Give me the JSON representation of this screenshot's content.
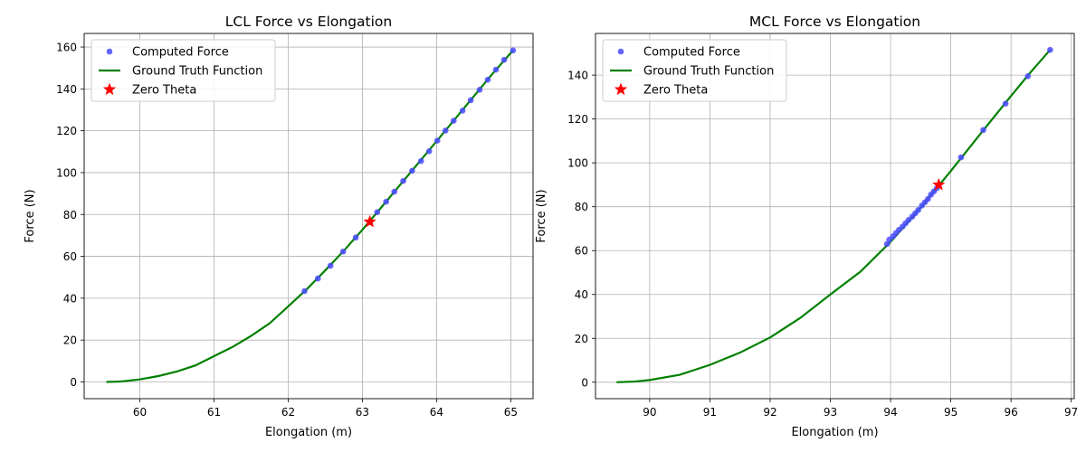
{
  "chart_data": [
    {
      "type": "scatter",
      "title": "LCL Force vs Elongation",
      "xlabel": "Elongation (m)",
      "ylabel": "Force (N)",
      "xlim": [
        59.25,
        65.3
      ],
      "ylim": [
        -8,
        166.5
      ],
      "xticks": [
        60,
        61,
        62,
        63,
        64,
        65
      ],
      "yticks": [
        0,
        20,
        40,
        60,
        80,
        100,
        120,
        140,
        160
      ],
      "grid": true,
      "legend_position": "upper-left",
      "series": [
        {
          "name": "Computed Force",
          "kind": "scatter",
          "color": "#4a4aff",
          "points": [
            [
              62.22,
              43.4
            ],
            [
              62.4,
              49.4
            ],
            [
              62.57,
              55.5
            ],
            [
              62.74,
              62.3
            ],
            [
              62.91,
              69.0
            ],
            [
              63.2,
              81.1
            ],
            [
              63.32,
              86.1
            ],
            [
              63.43,
              90.9
            ],
            [
              63.55,
              96.0
            ],
            [
              63.67,
              100.9
            ],
            [
              63.79,
              105.5
            ],
            [
              63.9,
              110.2
            ],
            [
              64.01,
              115.3
            ],
            [
              64.12,
              120.1
            ],
            [
              64.23,
              124.8
            ],
            [
              64.35,
              129.6
            ],
            [
              64.46,
              134.6
            ],
            [
              64.58,
              139.6
            ],
            [
              64.69,
              144.4
            ],
            [
              64.8,
              149.2
            ],
            [
              64.91,
              153.9
            ],
            [
              65.03,
              158.4
            ]
          ]
        },
        {
          "name": "Ground Truth Function",
          "kind": "line",
          "color": "#008000",
          "points": [
            [
              59.55,
              0.0
            ],
            [
              59.75,
              0.2
            ],
            [
              60.0,
              1.2
            ],
            [
              60.25,
              2.8
            ],
            [
              60.5,
              5.0
            ],
            [
              60.75,
              7.9
            ],
            [
              61.0,
              12.3
            ],
            [
              61.25,
              16.7
            ],
            [
              61.5,
              22.0
            ],
            [
              61.75,
              28.0
            ],
            [
              62.0,
              36.1
            ],
            [
              62.25,
              44.3
            ],
            [
              62.5,
              53.3
            ],
            [
              62.75,
              62.7
            ],
            [
              63.0,
              72.7
            ],
            [
              63.25,
              83.2
            ],
            [
              63.5,
              93.8
            ],
            [
              63.75,
              104.4
            ],
            [
              64.0,
              115.0
            ],
            [
              64.25,
              125.7
            ],
            [
              64.5,
              136.4
            ],
            [
              64.75,
              147.1
            ],
            [
              65.03,
              158.4
            ]
          ]
        },
        {
          "name": "Zero Theta",
          "kind": "marker",
          "color": "#ff0000",
          "points": [
            [
              63.1,
              76.5
            ]
          ]
        }
      ]
    },
    {
      "type": "scatter",
      "title": "MCL Force vs Elongation",
      "xlabel": "Elongation (m)",
      "ylabel": "Force (N)",
      "xlim": [
        89.1,
        97.05
      ],
      "ylim": [
        -7.5,
        159
      ],
      "xticks": [
        90,
        91,
        92,
        93,
        94,
        95,
        96,
        97
      ],
      "yticks": [
        0,
        20,
        40,
        60,
        80,
        100,
        120,
        140
      ],
      "grid": true,
      "legend_position": "upper-left",
      "series": [
        {
          "name": "Computed Force",
          "kind": "scatter",
          "color": "#4a4aff",
          "points": [
            [
              93.94,
              63.0
            ],
            [
              93.98,
              65.0
            ],
            [
              94.04,
              66.5
            ],
            [
              94.09,
              68.0
            ],
            [
              94.14,
              69.5
            ],
            [
              94.2,
              71.0
            ],
            [
              94.25,
              72.5
            ],
            [
              94.3,
              74.0
            ],
            [
              94.36,
              75.5
            ],
            [
              94.41,
              77.0
            ],
            [
              94.46,
              78.5
            ],
            [
              94.52,
              80.5
            ],
            [
              94.57,
              82.0
            ],
            [
              94.62,
              83.5
            ],
            [
              94.67,
              85.5
            ],
            [
              94.72,
              87.0
            ],
            [
              94.77,
              88.5
            ],
            [
              95.17,
              102.5
            ],
            [
              95.54,
              115.0
            ],
            [
              95.91,
              127.0
            ],
            [
              96.28,
              139.5
            ],
            [
              96.65,
              151.5
            ]
          ]
        },
        {
          "name": "Ground Truth Function",
          "kind": "line",
          "color": "#008000",
          "points": [
            [
              89.45,
              0.0
            ],
            [
              89.75,
              0.3
            ],
            [
              90.0,
              1.0
            ],
            [
              90.5,
              3.4
            ],
            [
              91.0,
              7.9
            ],
            [
              91.5,
              13.5
            ],
            [
              92.0,
              20.4
            ],
            [
              92.5,
              29.3
            ],
            [
              93.0,
              40.0
            ],
            [
              93.5,
              50.4
            ],
            [
              94.0,
              64.0
            ],
            [
              94.5,
              79.6
            ],
            [
              95.0,
              96.3
            ],
            [
              95.5,
              113.5
            ],
            [
              96.0,
              130.5
            ],
            [
              96.3,
              140.5
            ],
            [
              96.65,
              151.5
            ]
          ]
        },
        {
          "name": "Zero Theta",
          "kind": "marker",
          "color": "#ff0000",
          "points": [
            [
              94.8,
              90.0
            ]
          ]
        }
      ]
    }
  ]
}
